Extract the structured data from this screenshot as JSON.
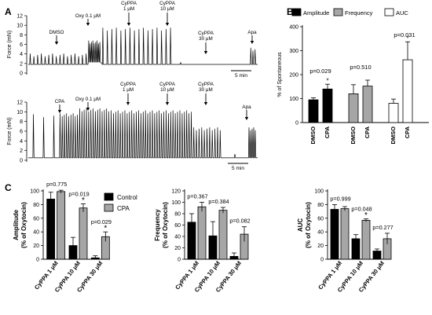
{
  "panels": {
    "A": {
      "letter": "A"
    },
    "B": {
      "letter": "B"
    },
    "C": {
      "letter": "C"
    }
  },
  "trace_top": {
    "ylabel": "Force (mN)",
    "yticks": [
      "0",
      "2",
      "4",
      "6",
      "8",
      "10",
      "12"
    ],
    "scalebar": "5 min",
    "markers": [
      "DMSO",
      "Oxy 0.1 μM",
      "CyPPA\n1 μM",
      "CyPPA\n10 μM",
      "CyPPA\n30 μM",
      "Apa"
    ]
  },
  "trace_bottom": {
    "ylabel": "Force (mN)",
    "yticks": [
      "0",
      "2",
      "4",
      "6",
      "8",
      "10",
      "12"
    ],
    "scalebar": "5 min",
    "markers": [
      "CPA",
      "Oxy 0.1 μM",
      "CyPPA\n1 μM",
      "CyPPA\n10 μM",
      "CyPPA\n30 μM",
      "Apa"
    ]
  },
  "colors": {
    "black": "#000000",
    "gray": "#a6a6a6",
    "white": "#ffffff"
  },
  "chart_data": [
    {
      "type": "bar",
      "panel": "B",
      "ylabel": "% of Spontaneous",
      "ylim": [
        0,
        400
      ],
      "yticks": [
        0,
        100,
        200,
        300,
        400
      ],
      "legend": [
        "Amplitude",
        "Frequency",
        "AUC"
      ],
      "groups": [
        {
          "name": "Amplitude",
          "fill": "black",
          "labels": [
            "DMSO",
            "CPA"
          ],
          "values": [
            95,
            140
          ],
          "errors": [
            8,
            20
          ],
          "p": "p=0.029",
          "star": "*"
        },
        {
          "name": "Frequency",
          "fill": "gray",
          "labels": [
            "DMSO",
            "CPA"
          ],
          "values": [
            120,
            152
          ],
          "errors": [
            38,
            25
          ],
          "p": "p=0.510",
          "star": ""
        },
        {
          "name": "AUC",
          "fill": "white",
          "labels": [
            "DMSO",
            "CPA"
          ],
          "values": [
            80,
            262
          ],
          "errors": [
            18,
            75
          ],
          "p": "p=0.031",
          "star": "*"
        }
      ]
    },
    {
      "type": "bar",
      "panel": "C1",
      "ylabel": "Amplitude\n(% of Oxytocin)",
      "ylim": [
        0,
        100
      ],
      "yticks": [
        0,
        20,
        40,
        60,
        80,
        100
      ],
      "legend": [
        "Control",
        "CPA"
      ],
      "categories": [
        "CyPPA 1 μM",
        "CyPPA 10 μM",
        "CyPPA 30 μM"
      ],
      "series": [
        {
          "name": "Control",
          "values": [
            88,
            20,
            2
          ],
          "errors": [
            10,
            12,
            3
          ]
        },
        {
          "name": "CPA",
          "values": [
            99,
            75,
            33
          ],
          "errors": [
            2,
            6,
            7
          ]
        }
      ],
      "pvalues": [
        "p=0.775",
        "p=0.019",
        "p=0.029"
      ],
      "stars": [
        "",
        "*",
        "*"
      ]
    },
    {
      "type": "bar",
      "panel": "C2",
      "ylabel": "Frequency\n(% of Oxytocin)",
      "ylim": [
        0,
        120
      ],
      "yticks": [
        0,
        20,
        40,
        60,
        80,
        100,
        120
      ],
      "categories": [
        "CyPPA 1 μM",
        "CyPPA 10 μM",
        "CyPPA 30 μM"
      ],
      "series": [
        {
          "name": "Control",
          "values": [
            65,
            41,
            5
          ],
          "errors": [
            15,
            25,
            6
          ]
        },
        {
          "name": "CPA",
          "values": [
            92,
            86,
            44
          ],
          "errors": [
            8,
            5,
            13
          ]
        }
      ],
      "pvalues": [
        "p=0.367",
        "p=0.384",
        "p=0.082"
      ],
      "stars": [
        "",
        "",
        ""
      ]
    },
    {
      "type": "bar",
      "panel": "C3",
      "ylabel": "AUC\n(% of Oxytocin)",
      "ylim": [
        0,
        100
      ],
      "yticks": [
        0,
        20,
        40,
        60,
        80,
        100
      ],
      "categories": [
        "CyPPA 1 μM",
        "CyPPA 10 μM",
        "CyPPA 30 μM"
      ],
      "series": [
        {
          "name": "Control",
          "values": [
            73,
            30,
            12
          ],
          "errors": [
            7,
            6,
            3
          ]
        },
        {
          "name": "CPA",
          "values": [
            74,
            57,
            30
          ],
          "errors": [
            3,
            2,
            8
          ]
        }
      ],
      "pvalues": [
        "p=0.999",
        "p=0.048",
        "p=0.277"
      ],
      "stars": [
        "",
        "*",
        ""
      ]
    }
  ]
}
